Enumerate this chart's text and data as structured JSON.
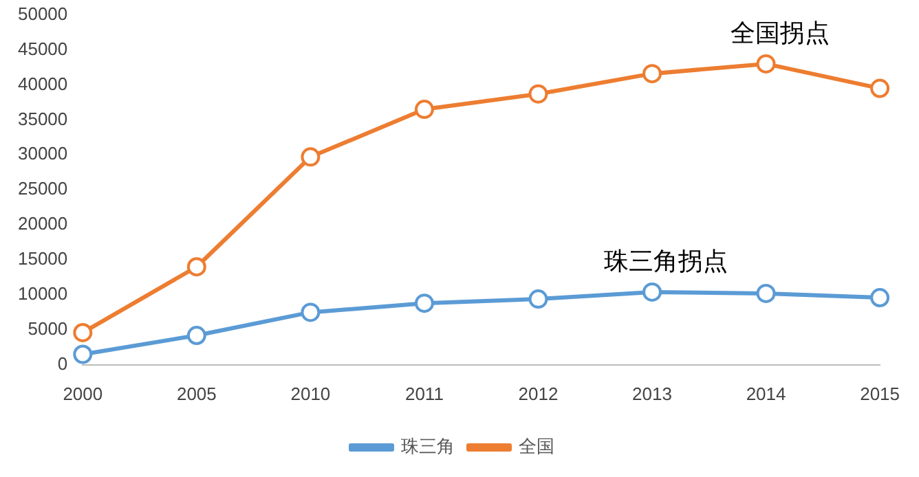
{
  "chart_data": {
    "type": "line",
    "categories": [
      "2000",
      "2005",
      "2010",
      "2011",
      "2012",
      "2013",
      "2014",
      "2015"
    ],
    "series": [
      {
        "name": "珠三角",
        "color": "#5b9bd5",
        "values": [
          1500,
          4200,
          7500,
          8800,
          9400,
          10400,
          10200,
          9600
        ]
      },
      {
        "name": "全国",
        "color": "#ed7d31",
        "values": [
          4600,
          14000,
          29700,
          36500,
          38700,
          41600,
          43000,
          39500
        ]
      }
    ],
    "ylim": [
      0,
      50000
    ],
    "yticks": [
      0,
      5000,
      10000,
      15000,
      20000,
      25000,
      30000,
      35000,
      40000,
      45000,
      50000
    ],
    "grid": false,
    "legend": "bottom",
    "marker": "circle",
    "line_style": "solid",
    "annotations": [
      {
        "text": "全国拐点",
        "x": "2014",
        "y": 43000
      },
      {
        "text": "珠三角拐点",
        "x": "2013",
        "y": 10400
      }
    ]
  }
}
